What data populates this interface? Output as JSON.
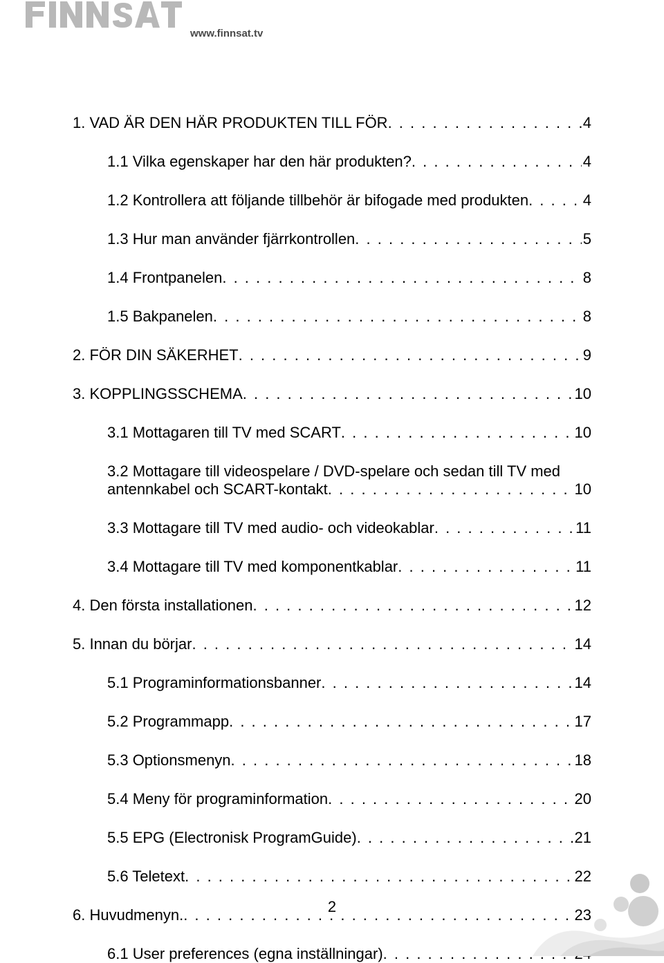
{
  "header": {
    "url": "www.finnsat.tv",
    "logo_color": "#b8b8b8"
  },
  "page_number": "2",
  "toc": [
    {
      "level": 1,
      "label": "1. VAD ÄR DEN HÄR PRODUKTEN TILL FÖR",
      "page": "4"
    },
    {
      "level": 2,
      "label": "1.1 Vilka egenskaper har den här produkten?",
      "page": "4"
    },
    {
      "level": 2,
      "label": "1.2 Kontrollera att följande tillbehör är bifogade med produkten",
      "page": "4"
    },
    {
      "level": 2,
      "label": "1.3 Hur man använder fjärrkontrollen",
      "page": "5"
    },
    {
      "level": 2,
      "label": "1.4 Frontpanelen",
      "page": "8"
    },
    {
      "level": 2,
      "label": "1.5 Bakpanelen",
      "page": "8"
    },
    {
      "level": 1,
      "label": "2. FÖR DIN SÄKERHET",
      "page": "9"
    },
    {
      "level": 1,
      "label": "3. KOPPLINGSSCHEMA",
      "page": "10"
    },
    {
      "level": 2,
      "label": "3.1 Mottagaren till TV med SCART",
      "page": "10"
    },
    {
      "level": 2,
      "label_a": "3.2 Mottagare till videospelare / DVD-spelare och sedan till TV med",
      "label_b": "antennkabel och SCART-kontakt",
      "page": "10",
      "multiline": true
    },
    {
      "level": 2,
      "label": "3.3 Mottagare till TV med audio- och videokablar",
      "page": "11"
    },
    {
      "level": 2,
      "label": "3.4 Mottagare till TV med komponentkablar",
      "page": "11"
    },
    {
      "level": 1,
      "label": "4. Den första installationen",
      "page": "12"
    },
    {
      "level": 1,
      "label": "5. Innan du börjar",
      "page": "14"
    },
    {
      "level": 2,
      "label": "5.1 Programinformationsbanner",
      "page": "14"
    },
    {
      "level": 2,
      "label": "5.2 Programmapp",
      "page": "17"
    },
    {
      "level": 2,
      "label": "5.3 Optionsmenyn",
      "page": "18"
    },
    {
      "level": 2,
      "label": "5.4 Meny för programinformation",
      "page": "20"
    },
    {
      "level": 2,
      "label": "5.5 EPG (Electronisk ProgramGuide)",
      "page": "21"
    },
    {
      "level": 2,
      "label": "5.6 Teletext",
      "page": "22"
    },
    {
      "level": 1,
      "label": "6. Huvudmenyn.",
      "page": "23"
    },
    {
      "level": 2,
      "label": "6.1 User preferences (egna inställningar)",
      "page": "24"
    }
  ],
  "deco_colors": {
    "c1": "#c9c9c9",
    "c2": "#d6d6d6",
    "c3": "#e2e2e2",
    "c4": "#ededed"
  }
}
